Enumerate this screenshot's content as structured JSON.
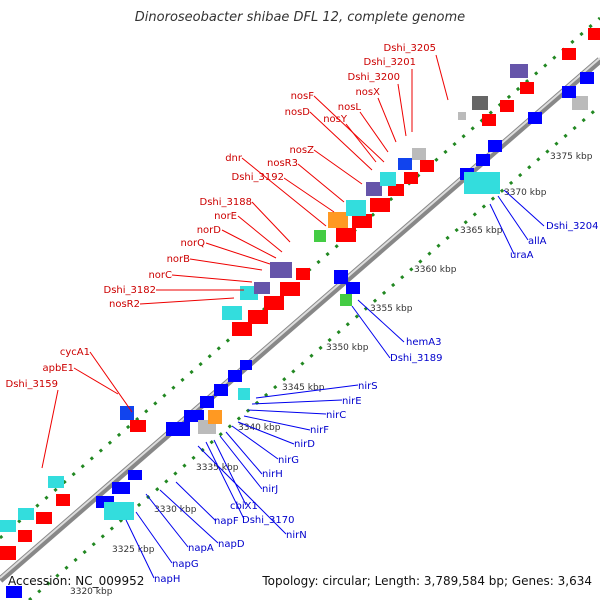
{
  "title": "Dinoroseobacter shibae DFL 12, complete genome",
  "accession": "Accession: NC_009952",
  "topology": "Topology: circular; Length: 3,789,584 bp; Genes: 3,634",
  "ticks": [
    "3320 kbp",
    "3325 kbp",
    "3330 kbp",
    "3335 kbp",
    "3340 kbp",
    "3345 kbp",
    "3350 kbp",
    "3355 kbp",
    "3360 kbp",
    "3365 kbp",
    "3370 kbp",
    "3375 kbp"
  ],
  "red_labels": [
    "Dshi_3205",
    "Dshi_3201",
    "Dshi_3200",
    "nosX",
    "nosF",
    "nosL",
    "nosD",
    "nosY",
    "nosZ",
    "dnr",
    "nosR3",
    "Dshi_3192",
    "Dshi_3188",
    "norE",
    "norD",
    "norQ",
    "norB",
    "norC",
    "Dshi_3182",
    "nosR2",
    "cycA1",
    "apbE1",
    "Dshi_3159"
  ],
  "blue_labels": [
    "Dshi_3204",
    "allA",
    "uraA",
    "hemA3",
    "Dshi_3189",
    "nirS",
    "nirE",
    "nirC",
    "nirF",
    "nirD",
    "nirG",
    "nirH",
    "nirJ",
    "cbiX1",
    "Dshi_3170",
    "nirN",
    "napF",
    "napD",
    "napA",
    "napG",
    "napH"
  ],
  "colors": {
    "forward": "#ff0000",
    "reverse": "#0000ff",
    "cyan": "#33dddd",
    "purple": "#6655aa",
    "green": "#44cc44",
    "orange": "#ff9922",
    "gray": "#bbbbbb",
    "dots": "#228822",
    "backbone": "#999999"
  }
}
